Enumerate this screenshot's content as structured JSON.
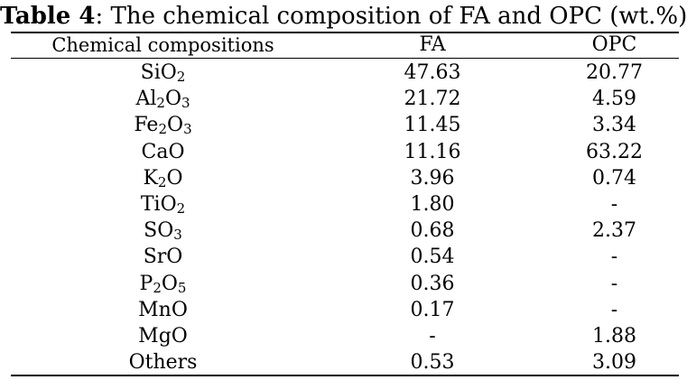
{
  "caption": {
    "label": "Table 4",
    "text": ": The chemical composition of FA and OPC (wt.%)"
  },
  "headers": [
    "Chemical compositions",
    "FA",
    "OPC"
  ],
  "rows": [
    {
      "parts": [
        "Si",
        "O",
        "2",
        ""
      ],
      "fa": "47.63",
      "opc": "20.77"
    },
    {
      "parts": [
        "Al",
        "2",
        "O",
        "3"
      ],
      "fa": "21.72",
      "opc": "4.59"
    },
    {
      "parts": [
        "Fe",
        "2",
        "O",
        "3"
      ],
      "fa": "11.45",
      "opc": "3.34"
    },
    {
      "parts": [
        "CaO",
        "",
        "",
        ""
      ],
      "fa": "11.16",
      "opc": "63.22"
    },
    {
      "parts": [
        "K",
        "2",
        "O",
        ""
      ],
      "fa": "3.96",
      "opc": "0.74"
    },
    {
      "parts": [
        "Ti",
        "O",
        "2",
        ""
      ],
      "fa": "1.80",
      "opc": "-"
    },
    {
      "parts": [
        "S",
        "O",
        "3",
        ""
      ],
      "fa": "0.68",
      "opc": "2.37"
    },
    {
      "parts": [
        "SrO",
        "",
        "",
        ""
      ],
      "fa": "0.54",
      "opc": "-"
    },
    {
      "parts": [
        "P",
        "2",
        "O",
        "5"
      ],
      "fa": "0.36",
      "opc": "-"
    },
    {
      "parts": [
        "MnO",
        "",
        "",
        ""
      ],
      "fa": "0.17",
      "opc": "-"
    },
    {
      "parts": [
        "MgO",
        "",
        "",
        ""
      ],
      "fa": "-",
      "opc": "1.88"
    },
    {
      "parts": [
        "Others",
        "",
        "",
        ""
      ],
      "fa": "0.53",
      "opc": "3.09"
    }
  ]
}
